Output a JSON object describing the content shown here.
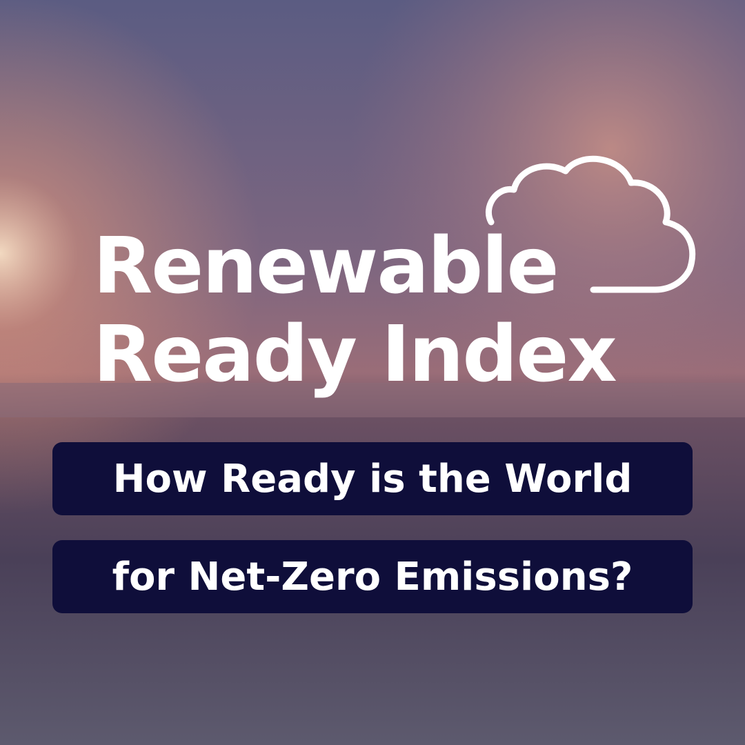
{
  "title_line1": "Renewable",
  "title_line2": "Ready Index",
  "subtitle_line1": "How Ready is the World",
  "subtitle_line2": "for Net-Zero Emissions?"
}
